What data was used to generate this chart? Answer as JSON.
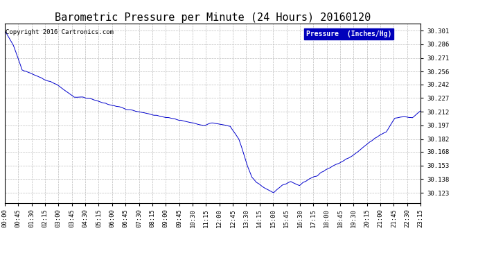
{
  "title": "Barometric Pressure per Minute (24 Hours) 20160120",
  "copyright_text": "Copyright 2016 Cartronics.com",
  "legend_label": "Pressure  (Inches/Hg)",
  "legend_bg": "#0000bb",
  "legend_text_color": "#ffffff",
  "line_color": "#0000cc",
  "bg_color": "#ffffff",
  "plot_bg_color": "#ffffff",
  "grid_color": "#bbbbbb",
  "yticks": [
    30.123,
    30.138,
    30.153,
    30.168,
    30.182,
    30.197,
    30.212,
    30.227,
    30.242,
    30.256,
    30.271,
    30.286,
    30.301
  ],
  "ylim": [
    30.112,
    30.309
  ],
  "xtick_labels": [
    "00:00",
    "00:45",
    "01:30",
    "02:15",
    "03:00",
    "03:45",
    "04:30",
    "05:15",
    "06:00",
    "06:45",
    "07:30",
    "08:15",
    "09:00",
    "09:45",
    "10:30",
    "11:15",
    "12:00",
    "12:45",
    "13:30",
    "14:15",
    "15:00",
    "15:45",
    "16:30",
    "17:15",
    "18:00",
    "18:45",
    "19:30",
    "20:15",
    "21:00",
    "21:45",
    "22:30",
    "23:15"
  ],
  "title_fontsize": 11,
  "axis_fontsize": 6.5,
  "copyright_fontsize": 6.5,
  "key_points_x": [
    0,
    30,
    60,
    90,
    120,
    150,
    180,
    210,
    240,
    270,
    300,
    330,
    360,
    390,
    420,
    450,
    480,
    510,
    540,
    570,
    600,
    630,
    660,
    690,
    720,
    750,
    780,
    810,
    825,
    840,
    855,
    870,
    900,
    930,
    960,
    990,
    1020,
    1050,
    1080,
    1110,
    1140,
    1170,
    1200,
    1230,
    1260,
    1290,
    1320,
    1350,
    1380,
    1410,
    1439
  ],
  "key_points_y": [
    30.301,
    30.285,
    30.258,
    30.254,
    30.25,
    30.246,
    30.242,
    30.235,
    30.228,
    30.228,
    30.226,
    30.223,
    30.22,
    30.218,
    30.215,
    30.213,
    30.211,
    30.209,
    30.207,
    30.205,
    30.203,
    30.201,
    30.199,
    30.197,
    30.2,
    30.198,
    30.196,
    30.182,
    30.168,
    30.152,
    30.14,
    30.135,
    30.128,
    30.123,
    30.131,
    30.135,
    30.131,
    30.138,
    30.142,
    30.148,
    30.153,
    30.158,
    30.163,
    30.17,
    30.178,
    30.185,
    30.19,
    30.205,
    30.207,
    30.205,
    30.213
  ]
}
